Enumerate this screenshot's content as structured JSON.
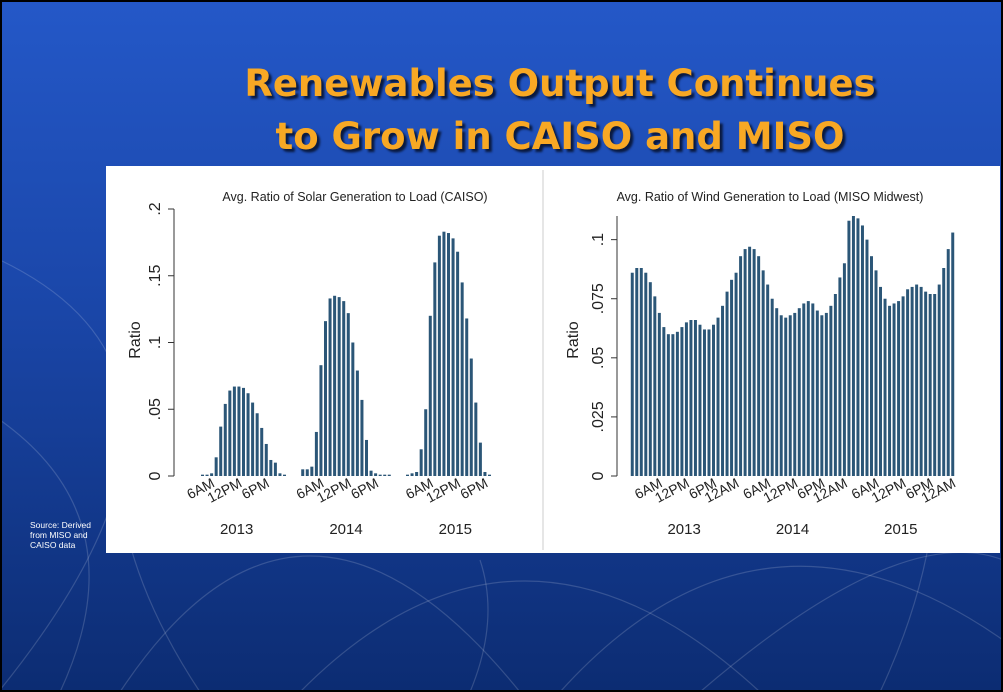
{
  "slide": {
    "title": [
      "Renewables Output Continues",
      "to Grow in CAISO and MISO"
    ],
    "source": "Source: Derived from MISO and CAISO data"
  },
  "chart_data": [
    {
      "type": "bar",
      "title": "Avg. Ratio of Solar Generation to Load (CAISO)",
      "ylabel": "Ratio",
      "color": "#2b5677",
      "categories": [
        null,
        null,
        null,
        null,
        null,
        null,
        "6AM",
        null,
        null,
        null,
        null,
        null,
        "12PM",
        null,
        null,
        null,
        null,
        null,
        "6PM",
        null,
        null,
        null,
        null,
        null,
        null,
        null,
        null,
        null,
        null,
        null,
        "6AM",
        null,
        null,
        null,
        null,
        null,
        "12PM",
        null,
        null,
        null,
        null,
        null,
        "6PM",
        null,
        null,
        null,
        null,
        null,
        null,
        null,
        null,
        null,
        null,
        null,
        "6AM",
        null,
        null,
        null,
        null,
        null,
        "12PM",
        null,
        null,
        null,
        null,
        null,
        "6PM",
        null,
        null,
        null,
        null,
        null
      ],
      "groups": [
        "2013",
        "2014",
        "2015"
      ],
      "values": [
        0,
        0,
        0,
        0,
        0.001,
        0.001,
        0.002,
        0.014,
        0.037,
        0.054,
        0.064,
        0.067,
        0.067,
        0.066,
        0.062,
        0.055,
        0.047,
        0.036,
        0.024,
        0.012,
        0.01,
        0.002,
        0.001,
        0,
        0,
        0,
        0.005,
        0.005,
        0.007,
        0.033,
        0.083,
        0.116,
        0.133,
        0.135,
        0.134,
        0.131,
        0.122,
        0.1,
        0.079,
        0.057,
        0.027,
        0.004,
        0.002,
        0.001,
        0.001,
        0.001,
        0,
        0,
        0,
        0.001,
        0.002,
        0.003,
        0.02,
        0.05,
        0.12,
        0.16,
        0.18,
        0.183,
        0.182,
        0.178,
        0.168,
        0.145,
        0.118,
        0.088,
        0.055,
        0.025,
        0.003,
        0.001,
        0,
        0,
        0,
        0
      ],
      "ylim": [
        0,
        0.2
      ],
      "yticks": [
        0,
        {
          "value": 0.05,
          "label": ".05"
        },
        {
          "value": 0.1,
          "label": ".1"
        },
        {
          "value": 0.15,
          "label": ".15"
        },
        {
          "value": 0.2,
          "label": ".2"
        }
      ]
    },
    {
      "type": "bar",
      "title": "Avg. Ratio of Wind Generation to Load (MISO Midwest)",
      "ylabel": "Ratio",
      "color": "#2b5677",
      "categories": [
        null,
        null,
        null,
        null,
        null,
        null,
        "6AM",
        null,
        null,
        null,
        null,
        null,
        "12PM",
        null,
        null,
        null,
        null,
        null,
        "6PM",
        null,
        null,
        null,
        null,
        "12AM",
        null,
        null,
        null,
        null,
        null,
        null,
        "6AM",
        null,
        null,
        null,
        null,
        null,
        "12PM",
        null,
        null,
        null,
        null,
        null,
        "6PM",
        null,
        null,
        null,
        null,
        "12AM",
        null,
        null,
        null,
        null,
        null,
        null,
        "6AM",
        null,
        null,
        null,
        null,
        null,
        "12PM",
        null,
        null,
        null,
        null,
        null,
        "6PM",
        null,
        null,
        null,
        null,
        "12AM"
      ],
      "groups": [
        "2013",
        "2014",
        "2015"
      ],
      "values": [
        0.086,
        0.088,
        0.088,
        0.086,
        0.082,
        0.076,
        0.069,
        0.063,
        0.06,
        0.06,
        0.061,
        0.063,
        0.065,
        0.066,
        0.066,
        0.064,
        0.062,
        0.062,
        0.064,
        0.067,
        0.072,
        0.078,
        0.083,
        0.086,
        0.093,
        0.096,
        0.097,
        0.096,
        0.093,
        0.087,
        0.081,
        0.075,
        0.071,
        0.068,
        0.067,
        0.068,
        0.069,
        0.071,
        0.073,
        0.074,
        0.073,
        0.07,
        0.068,
        0.069,
        0.072,
        0.077,
        0.084,
        0.09,
        0.108,
        0.11,
        0.109,
        0.106,
        0.1,
        0.093,
        0.087,
        0.08,
        0.075,
        0.072,
        0.073,
        0.074,
        0.076,
        0.079,
        0.08,
        0.081,
        0.08,
        0.078,
        0.077,
        0.077,
        0.081,
        0.088,
        0.096,
        0.103
      ],
      "ylim": [
        0,
        0.11
      ],
      "yticks": [
        0,
        {
          "value": 0.025,
          "label": ".025"
        },
        {
          "value": 0.05,
          "label": ".05"
        },
        {
          "value": 0.075,
          "label": ".075"
        },
        {
          "value": 0.1,
          "label": ".1"
        }
      ]
    }
  ]
}
